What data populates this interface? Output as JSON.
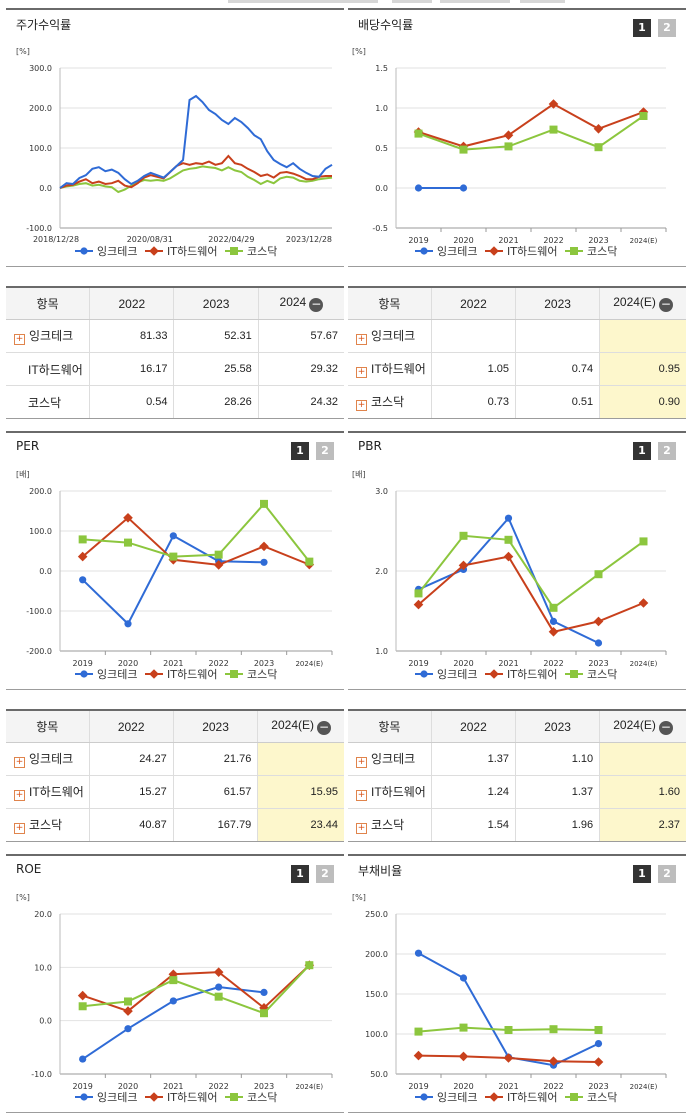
{
  "colors": {
    "company": "#2f6bd6",
    "industry": "#c8401c",
    "kosdaq": "#8cc63e"
  },
  "legend": [
    "잉크테크",
    "IT하드웨어",
    "코스닥"
  ],
  "icons": {
    "plus": "plus-box-icon",
    "minus": "minus-circle-icon"
  },
  "panels": {
    "price": {
      "title": "주가수익률",
      "chart_data": {
        "type": "line",
        "title": "주가수익률",
        "unit": "[%]",
        "ylim": [
          -100,
          300
        ],
        "yticks": [
          "300.0",
          "200.0",
          "100.0",
          "0.0",
          "-100.0"
        ],
        "xticks": [
          "2018/12/28",
          "2020/08/31",
          "2022/04/29",
          "2023/12/28"
        ],
        "x_start": "2018-12-28",
        "x_end": "2024-05-31",
        "series": [
          {
            "name": "잉크테크",
            "values": [
              0,
              12,
              10,
              25,
              32,
              48,
              52,
              42,
              46,
              38,
              22,
              10,
              18,
              30,
              38,
              32,
              26,
              40,
              55,
              70,
              220,
              230,
              215,
              195,
              185,
              170,
              160,
              175,
              165,
              150,
              132,
              122,
              92,
              70,
              60,
              52,
              62,
              48,
              38,
              30,
              28,
              48,
              58
            ]
          },
          {
            "name": "IT하드웨어",
            "values": [
              0,
              6,
              8,
              16,
              22,
              12,
              16,
              10,
              12,
              18,
              6,
              2,
              12,
              26,
              32,
              28,
              24,
              40,
              55,
              62,
              58,
              62,
              60,
              66,
              58,
              62,
              80,
              62,
              58,
              48,
              40,
              30,
              34,
              26,
              38,
              40,
              36,
              30,
              22,
              22,
              28,
              30,
              30
            ]
          },
          {
            "name": "코스닥",
            "values": [
              0,
              4,
              6,
              10,
              12,
              6,
              8,
              4,
              2,
              -10,
              -4,
              6,
              14,
              20,
              18,
              20,
              18,
              24,
              34,
              44,
              48,
              50,
              54,
              52,
              50,
              44,
              52,
              44,
              40,
              28,
              20,
              10,
              18,
              12,
              24,
              28,
              26,
              18,
              16,
              18,
              22,
              24,
              26
            ]
          }
        ]
      }
    },
    "dividend": {
      "title": "배당수익률",
      "chart_data": {
        "type": "line",
        "title": "배당수익률",
        "unit": "[%]",
        "ylim": [
          -0.5,
          1.5
        ],
        "yticks": [
          "1.5",
          "1.0",
          "0.5",
          "0.0",
          "-0.5"
        ],
        "categories": [
          "2019",
          "2020",
          "2021",
          "2022",
          "2023",
          "2024(E)"
        ],
        "series": [
          {
            "name": "잉크테크",
            "values": [
              0.0,
              0.0,
              null,
              null,
              null,
              null
            ]
          },
          {
            "name": "IT하드웨어",
            "values": [
              0.7,
              0.52,
              0.66,
              1.05,
              0.74,
              0.95
            ]
          },
          {
            "name": "코스닥",
            "values": [
              0.68,
              0.48,
              0.52,
              0.73,
              0.51,
              0.9
            ]
          }
        ]
      }
    },
    "per": {
      "title": "PER",
      "chart_data": {
        "type": "line",
        "title": "PER",
        "unit": "[배]",
        "ylim": [
          -200,
          200
        ],
        "yticks": [
          "200.0",
          "100.0",
          "0.0",
          "-100.0",
          "-200.0"
        ],
        "categories": [
          "2019",
          "2020",
          "2021",
          "2022",
          "2023",
          "2024(E)"
        ],
        "series": [
          {
            "name": "잉크테크",
            "values": [
              -22,
              -132,
              88,
              24.27,
              21.76,
              null
            ]
          },
          {
            "name": "IT하드웨어",
            "values": [
              36,
              133,
              28,
              15.27,
              61.57,
              15.95
            ]
          },
          {
            "name": "코스닥",
            "values": [
              79,
              71,
              36,
              40.87,
              167.79,
              23.44
            ]
          }
        ]
      }
    },
    "pbr": {
      "title": "PBR",
      "chart_data": {
        "type": "line",
        "title": "PBR",
        "unit": "[배]",
        "ylim": [
          1.0,
          3.0
        ],
        "yticks": [
          "3.0",
          "2.0",
          "1.0"
        ],
        "categories": [
          "2019",
          "2020",
          "2021",
          "2022",
          "2023",
          "2024(E)"
        ],
        "series": [
          {
            "name": "잉크테크",
            "values": [
              1.77,
              2.02,
              2.66,
              1.37,
              1.1,
              null
            ]
          },
          {
            "name": "IT하드웨어",
            "values": [
              1.58,
              2.07,
              2.18,
              1.24,
              1.37,
              1.6
            ]
          },
          {
            "name": "코스닥",
            "values": [
              1.72,
              2.44,
              2.39,
              1.54,
              1.96,
              2.37
            ]
          }
        ]
      }
    },
    "roe": {
      "title": "ROE",
      "chart_data": {
        "type": "line",
        "title": "ROE",
        "unit": "[%]",
        "ylim": [
          -10,
          20
        ],
        "yticks": [
          "20.0",
          "10.0",
          "0.0",
          "-10.0"
        ],
        "categories": [
          "2019",
          "2020",
          "2021",
          "2022",
          "2023",
          "2024(E)"
        ],
        "series": [
          {
            "name": "잉크테크",
            "values": [
              -7.2,
              -1.5,
              3.7,
              6.3,
              5.3,
              null
            ]
          },
          {
            "name": "IT하드웨어",
            "values": [
              4.7,
              1.8,
              8.7,
              9.1,
              2.4,
              10.4
            ]
          },
          {
            "name": "코스닥",
            "values": [
              2.7,
              3.6,
              7.6,
              4.5,
              1.4,
              10.4
            ]
          }
        ]
      }
    },
    "debt": {
      "title": "부채비율",
      "chart_data": {
        "type": "line",
        "title": "부채비율",
        "unit": "[%]",
        "ylim": [
          50,
          250
        ],
        "yticks": [
          "250.0",
          "200.0",
          "150.0",
          "100.0",
          "50.0"
        ],
        "categories": [
          "2019",
          "2020",
          "2021",
          "2022",
          "2023",
          "2024(E)"
        ],
        "series": [
          {
            "name": "잉크테크",
            "values": [
              201,
              170,
              71,
              61,
              88,
              null
            ]
          },
          {
            "name": "IT하드웨어",
            "values": [
              73,
              72,
              70,
              66,
              65,
              null
            ]
          },
          {
            "name": "코스닥",
            "values": [
              103,
              108,
              105,
              106,
              105,
              null
            ]
          }
        ]
      }
    }
  },
  "tables": {
    "price": {
      "headers": [
        "항목",
        "2022",
        "2023",
        "2024"
      ],
      "rows": [
        {
          "label": "잉크테크",
          "plus": true,
          "values": [
            "81.33",
            "52.31",
            "57.67"
          ]
        },
        {
          "label": "IT하드웨어",
          "plus": false,
          "values": [
            "16.17",
            "25.58",
            "29.32"
          ]
        },
        {
          "label": "코스닥",
          "plus": false,
          "values": [
            "0.54",
            "28.26",
            "24.32"
          ]
        }
      ]
    },
    "dividend": {
      "headers": [
        "항목",
        "2022",
        "2023",
        "2024(E)"
      ],
      "rows": [
        {
          "label": "잉크테크",
          "plus": true,
          "values": [
            "",
            "",
            ""
          ]
        },
        {
          "label": "IT하드웨어",
          "plus": true,
          "values": [
            "1.05",
            "0.74",
            "0.95"
          ]
        },
        {
          "label": "코스닥",
          "plus": true,
          "values": [
            "0.73",
            "0.51",
            "0.90"
          ]
        }
      ]
    },
    "per": {
      "headers": [
        "항목",
        "2022",
        "2023",
        "2024(E)"
      ],
      "rows": [
        {
          "label": "잉크테크",
          "plus": true,
          "values": [
            "24.27",
            "21.76",
            ""
          ]
        },
        {
          "label": "IT하드웨어",
          "plus": true,
          "values": [
            "15.27",
            "61.57",
            "15.95"
          ]
        },
        {
          "label": "코스닥",
          "plus": true,
          "values": [
            "40.87",
            "167.79",
            "23.44"
          ]
        }
      ]
    },
    "pbr": {
      "headers": [
        "항목",
        "2022",
        "2023",
        "2024(E)"
      ],
      "rows": [
        {
          "label": "잉크테크",
          "plus": true,
          "values": [
            "1.37",
            "1.10",
            ""
          ]
        },
        {
          "label": "IT하드웨어",
          "plus": true,
          "values": [
            "1.24",
            "1.37",
            "1.60"
          ]
        },
        {
          "label": "코스닥",
          "plus": true,
          "values": [
            "1.54",
            "1.96",
            "2.37"
          ]
        }
      ]
    }
  }
}
